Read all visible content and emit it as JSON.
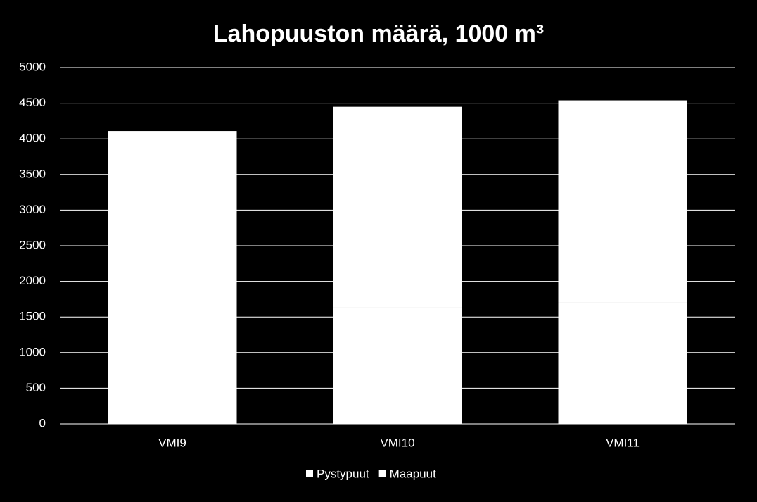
{
  "chart_data": {
    "type": "stacked-bar",
    "title": "Lahopuuston määrä, 1000 m³",
    "categories": [
      "VMI9",
      "VMI10",
      "VMI11"
    ],
    "series": [
      {
        "name": "Pystypuut",
        "color": "#ffffff",
        "values": [
          1560,
          1640,
          1700
        ]
      },
      {
        "name": "Maapuut",
        "color": "#ffffff",
        "values": [
          2550,
          2810,
          2840
        ]
      }
    ],
    "ylim": [
      0,
      5000
    ],
    "yticks": [
      0,
      500,
      1000,
      1500,
      2000,
      2500,
      3000,
      3500,
      4000,
      4500,
      5000
    ],
    "grid": true,
    "legend": "bottom"
  }
}
